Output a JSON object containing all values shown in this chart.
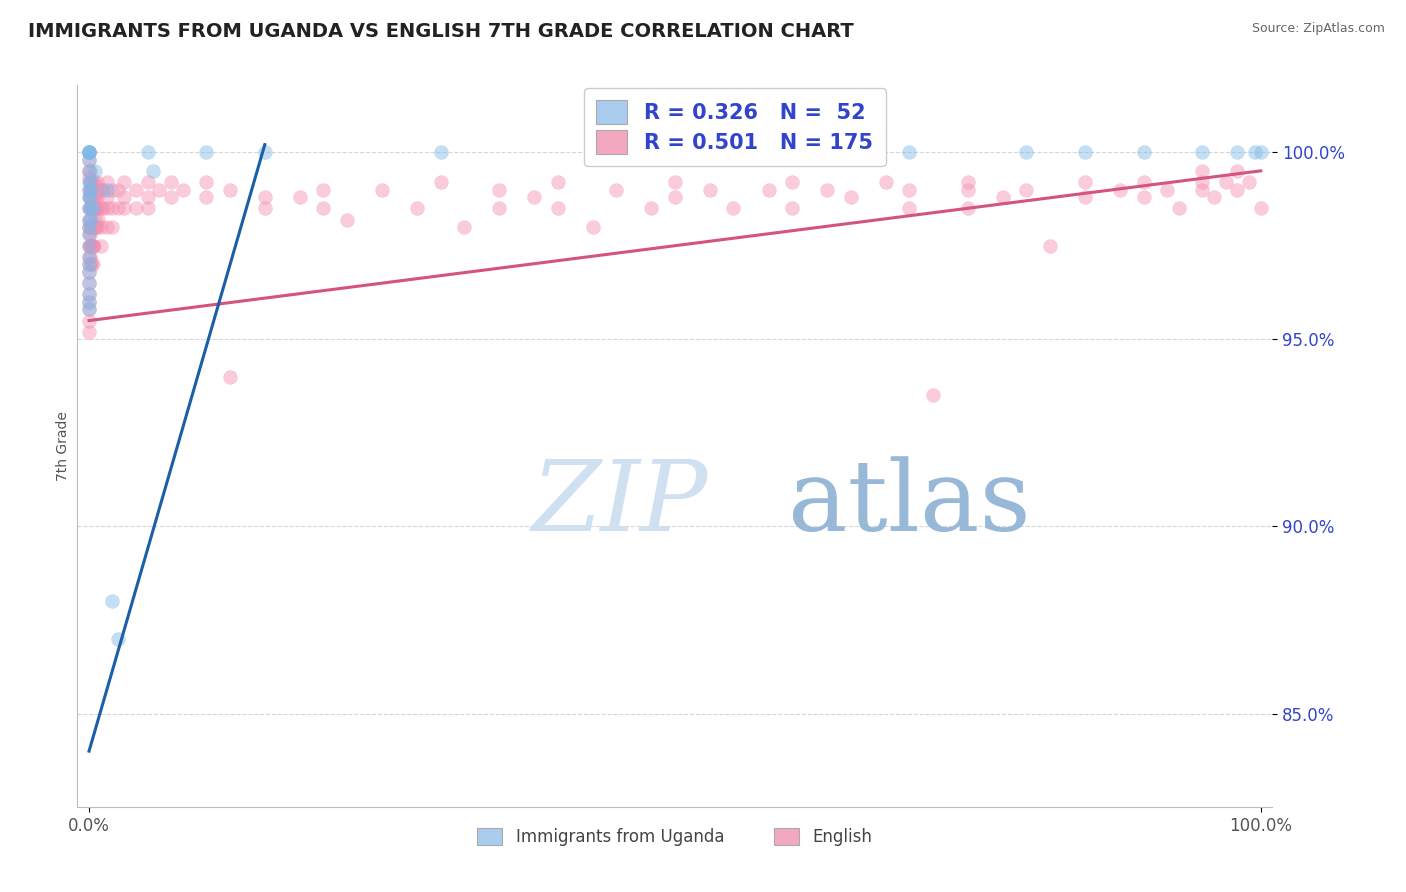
{
  "title": "IMMIGRANTS FROM UGANDA VS ENGLISH 7TH GRADE CORRELATION CHART",
  "source": "Source: ZipAtlas.com",
  "ylabel": "7th Grade",
  "watermark_zip": "ZIP",
  "watermark_atlas": "atlas",
  "legend_entries": [
    {
      "label": "Immigrants from Uganda",
      "color": "#7db8e8",
      "R": 0.326,
      "N": 52
    },
    {
      "label": "English",
      "color": "#f48fb1",
      "R": 0.501,
      "N": 175
    }
  ],
  "blue_scatter": [
    [
      0.0,
      100.0
    ],
    [
      0.0,
      100.0
    ],
    [
      0.0,
      100.0
    ],
    [
      0.0,
      100.0
    ],
    [
      0.0,
      100.0
    ],
    [
      0.0,
      99.8
    ],
    [
      0.0,
      99.5
    ],
    [
      0.0,
      99.2
    ],
    [
      0.0,
      99.0
    ],
    [
      0.0,
      98.8
    ],
    [
      0.0,
      98.5
    ],
    [
      0.0,
      98.2
    ],
    [
      0.0,
      98.0
    ],
    [
      0.0,
      97.8
    ],
    [
      0.0,
      97.5
    ],
    [
      0.0,
      97.2
    ],
    [
      0.0,
      97.0
    ],
    [
      0.0,
      96.8
    ],
    [
      0.0,
      96.5
    ],
    [
      0.0,
      96.2
    ],
    [
      0.0,
      96.0
    ],
    [
      0.0,
      95.8
    ],
    [
      0.05,
      99.2
    ],
    [
      0.05,
      98.5
    ],
    [
      0.1,
      98.8
    ],
    [
      0.15,
      98.2
    ],
    [
      0.2,
      99.0
    ],
    [
      0.3,
      98.5
    ],
    [
      0.5,
      99.5
    ],
    [
      1.5,
      99.0
    ],
    [
      2.0,
      88.0
    ],
    [
      2.5,
      87.0
    ],
    [
      5.0,
      100.0
    ],
    [
      5.5,
      99.5
    ],
    [
      10.0,
      100.0
    ],
    [
      15.0,
      100.0
    ],
    [
      30.0,
      100.0
    ],
    [
      45.0,
      100.0
    ],
    [
      60.0,
      100.0
    ],
    [
      70.0,
      100.0
    ],
    [
      80.0,
      100.0
    ],
    [
      85.0,
      100.0
    ],
    [
      90.0,
      100.0
    ],
    [
      95.0,
      100.0
    ],
    [
      98.0,
      100.0
    ],
    [
      99.5,
      100.0
    ],
    [
      100.0,
      100.0
    ]
  ],
  "pink_scatter": [
    [
      0.0,
      99.8
    ],
    [
      0.0,
      99.5
    ],
    [
      0.0,
      99.3
    ],
    [
      0.0,
      99.0
    ],
    [
      0.0,
      98.8
    ],
    [
      0.0,
      98.5
    ],
    [
      0.0,
      98.2
    ],
    [
      0.0,
      98.0
    ],
    [
      0.0,
      97.8
    ],
    [
      0.0,
      97.5
    ],
    [
      0.0,
      97.2
    ],
    [
      0.0,
      97.0
    ],
    [
      0.0,
      96.8
    ],
    [
      0.0,
      96.5
    ],
    [
      0.0,
      96.2
    ],
    [
      0.0,
      96.0
    ],
    [
      0.0,
      95.8
    ],
    [
      0.0,
      95.5
    ],
    [
      0.0,
      95.2
    ],
    [
      0.05,
      99.5
    ],
    [
      0.05,
      99.0
    ],
    [
      0.05,
      98.5
    ],
    [
      0.05,
      98.0
    ],
    [
      0.05,
      97.5
    ],
    [
      0.1,
      99.2
    ],
    [
      0.1,
      98.8
    ],
    [
      0.1,
      98.2
    ],
    [
      0.1,
      97.8
    ],
    [
      0.1,
      97.2
    ],
    [
      0.15,
      99.0
    ],
    [
      0.15,
      98.5
    ],
    [
      0.15,
      98.0
    ],
    [
      0.15,
      97.5
    ],
    [
      0.15,
      97.0
    ],
    [
      0.2,
      99.2
    ],
    [
      0.2,
      98.8
    ],
    [
      0.2,
      98.5
    ],
    [
      0.2,
      98.0
    ],
    [
      0.2,
      97.5
    ],
    [
      0.2,
      97.0
    ],
    [
      0.25,
      99.0
    ],
    [
      0.25,
      98.5
    ],
    [
      0.25,
      98.0
    ],
    [
      0.25,
      97.5
    ],
    [
      0.3,
      99.2
    ],
    [
      0.3,
      98.8
    ],
    [
      0.3,
      98.5
    ],
    [
      0.3,
      98.0
    ],
    [
      0.3,
      97.5
    ],
    [
      0.3,
      97.0
    ],
    [
      0.35,
      99.0
    ],
    [
      0.35,
      98.5
    ],
    [
      0.35,
      98.0
    ],
    [
      0.35,
      97.5
    ],
    [
      0.4,
      99.2
    ],
    [
      0.4,
      98.8
    ],
    [
      0.4,
      98.5
    ],
    [
      0.4,
      98.0
    ],
    [
      0.4,
      97.5
    ],
    [
      0.5,
      99.0
    ],
    [
      0.5,
      98.8
    ],
    [
      0.5,
      98.5
    ],
    [
      0.5,
      98.2
    ],
    [
      0.5,
      98.0
    ],
    [
      0.6,
      99.0
    ],
    [
      0.6,
      98.5
    ],
    [
      0.6,
      98.0
    ],
    [
      0.7,
      99.2
    ],
    [
      0.7,
      98.8
    ],
    [
      0.7,
      98.5
    ],
    [
      0.7,
      98.0
    ],
    [
      0.8,
      99.0
    ],
    [
      0.8,
      98.5
    ],
    [
      0.8,
      98.2
    ],
    [
      1.0,
      99.0
    ],
    [
      1.0,
      98.5
    ],
    [
      1.0,
      98.0
    ],
    [
      1.0,
      97.5
    ],
    [
      1.2,
      99.0
    ],
    [
      1.2,
      98.5
    ],
    [
      1.5,
      99.2
    ],
    [
      1.5,
      98.8
    ],
    [
      1.5,
      98.5
    ],
    [
      1.5,
      98.0
    ],
    [
      2.0,
      99.0
    ],
    [
      2.0,
      98.5
    ],
    [
      2.0,
      98.0
    ],
    [
      2.5,
      99.0
    ],
    [
      2.5,
      98.5
    ],
    [
      3.0,
      99.2
    ],
    [
      3.0,
      98.8
    ],
    [
      3.0,
      98.5
    ],
    [
      4.0,
      99.0
    ],
    [
      4.0,
      98.5
    ],
    [
      5.0,
      99.2
    ],
    [
      5.0,
      98.8
    ],
    [
      5.0,
      98.5
    ],
    [
      6.0,
      99.0
    ],
    [
      7.0,
      99.2
    ],
    [
      7.0,
      98.8
    ],
    [
      8.0,
      99.0
    ],
    [
      10.0,
      99.2
    ],
    [
      10.0,
      98.8
    ],
    [
      12.0,
      99.0
    ],
    [
      12.0,
      94.0
    ],
    [
      15.0,
      98.8
    ],
    [
      15.0,
      98.5
    ],
    [
      18.0,
      98.8
    ],
    [
      20.0,
      99.0
    ],
    [
      20.0,
      98.5
    ],
    [
      22.0,
      98.2
    ],
    [
      25.0,
      99.0
    ],
    [
      28.0,
      98.5
    ],
    [
      30.0,
      99.2
    ],
    [
      32.0,
      98.0
    ],
    [
      35.0,
      99.0
    ],
    [
      35.0,
      98.5
    ],
    [
      38.0,
      98.8
    ],
    [
      40.0,
      99.2
    ],
    [
      40.0,
      98.5
    ],
    [
      43.0,
      98.0
    ],
    [
      45.0,
      99.0
    ],
    [
      48.0,
      98.5
    ],
    [
      50.0,
      99.2
    ],
    [
      50.0,
      98.8
    ],
    [
      53.0,
      99.0
    ],
    [
      55.0,
      98.5
    ],
    [
      58.0,
      99.0
    ],
    [
      60.0,
      99.2
    ],
    [
      60.0,
      98.5
    ],
    [
      63.0,
      99.0
    ],
    [
      65.0,
      98.8
    ],
    [
      68.0,
      99.2
    ],
    [
      70.0,
      99.0
    ],
    [
      70.0,
      98.5
    ],
    [
      72.0,
      93.5
    ],
    [
      75.0,
      99.2
    ],
    [
      75.0,
      99.0
    ],
    [
      75.0,
      98.5
    ],
    [
      78.0,
      98.8
    ],
    [
      80.0,
      99.0
    ],
    [
      82.0,
      97.5
    ],
    [
      85.0,
      99.2
    ],
    [
      85.0,
      98.8
    ],
    [
      88.0,
      99.0
    ],
    [
      90.0,
      99.2
    ],
    [
      90.0,
      98.8
    ],
    [
      92.0,
      99.0
    ],
    [
      93.0,
      98.5
    ],
    [
      95.0,
      99.5
    ],
    [
      95.0,
      99.2
    ],
    [
      95.0,
      99.0
    ],
    [
      96.0,
      98.8
    ],
    [
      97.0,
      99.2
    ],
    [
      98.0,
      99.5
    ],
    [
      98.0,
      99.0
    ],
    [
      99.0,
      99.2
    ],
    [
      100.0,
      98.5
    ]
  ],
  "blue_line": {
    "x0": 0.0,
    "y0": 84.0,
    "x1": 15.0,
    "y1": 100.2
  },
  "pink_line": {
    "x0": 0.0,
    "y0": 95.5,
    "x1": 100.0,
    "y1": 99.5
  },
  "xlim": [
    -1.0,
    101.0
  ],
  "ylim": [
    82.5,
    101.8
  ],
  "yticks": [
    85.0,
    90.0,
    95.0,
    100.0
  ],
  "ytick_labels": [
    "85.0%",
    "90.0%",
    "95.0%",
    "100.0%"
  ],
  "xticks": [
    0.0,
    100.0
  ],
  "xtick_labels": [
    "0.0%",
    "100.0%"
  ],
  "grid_color": "#cccccc",
  "background_color": "#ffffff",
  "blue_color": "#7db8e8",
  "pink_color": "#f48fb1",
  "blue_line_color": "#1a5fa8",
  "pink_line_color": "#d4547a",
  "legend_R_N_color": "#3344cc",
  "title_color": "#222222",
  "source_color": "#666666",
  "watermark_color": "#cfe0f0",
  "watermark_atlas_color": "#98b8d8",
  "marker_size": 10,
  "marker_alpha": 0.45,
  "legend_box_color_blue": "#aaccee",
  "legend_box_color_pink": "#f4a8c0"
}
